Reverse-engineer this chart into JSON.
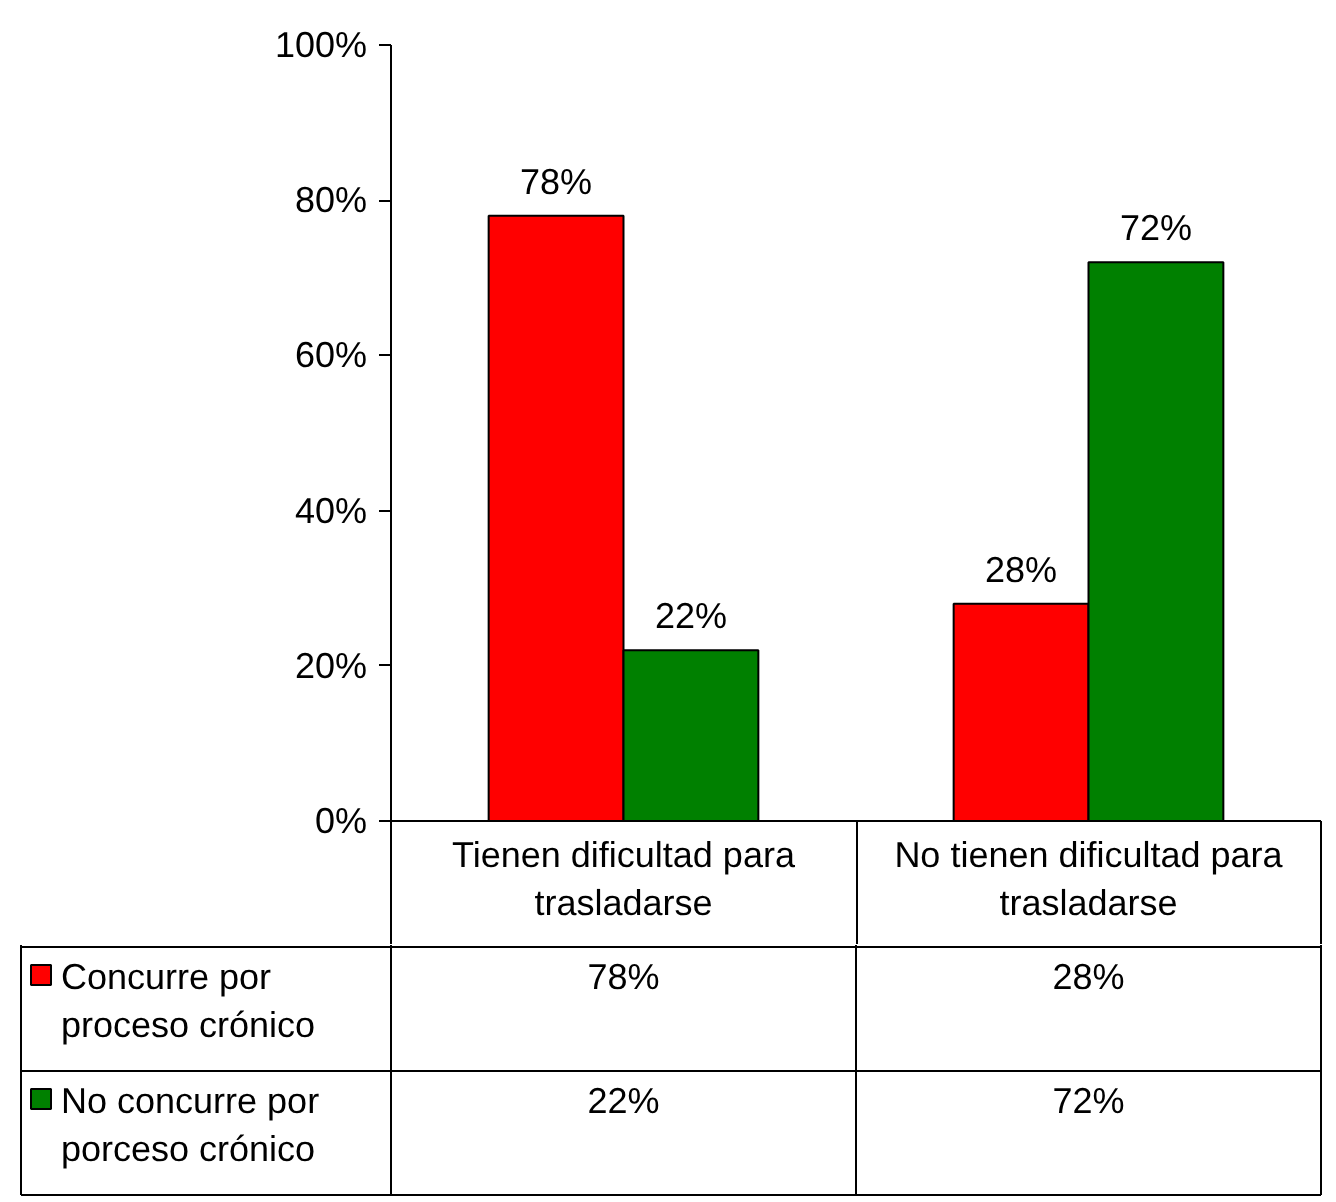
{
  "chart_data": {
    "type": "bar",
    "categories": [
      "Tienen dificultad para trasladarse",
      "No tienen dificultad para trasladarse"
    ],
    "series": [
      {
        "name": "Concurre por proceso crónico",
        "color": "#ff0000",
        "values": [
          78,
          28
        ],
        "value_labels": [
          "78%",
          "28%"
        ]
      },
      {
        "name": "No concurre por porceso crónico",
        "color": "#008000",
        "values": [
          22,
          72
        ],
        "value_labels": [
          "22%",
          "72%"
        ]
      }
    ],
    "ylim": [
      0,
      100
    ],
    "yticks": [
      {
        "value": 0,
        "label": "0%"
      },
      {
        "value": 20,
        "label": "20%"
      },
      {
        "value": 40,
        "label": "40%"
      },
      {
        "value": 60,
        "label": "60%"
      },
      {
        "value": 80,
        "label": "80%"
      },
      {
        "value": 100,
        "label": "100%"
      }
    ],
    "legend": "bottom"
  }
}
